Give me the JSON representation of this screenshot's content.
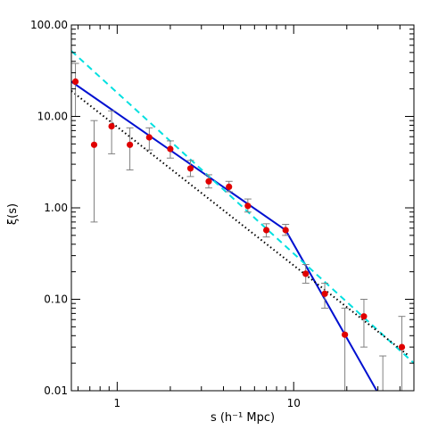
{
  "chart_data": {
    "type": "scatter",
    "title": "",
    "xlabel": "s (h⁻¹ Mpc)",
    "ylabel": "ξ(s)",
    "xscale": "log",
    "yscale": "log",
    "xlim": [
      0.55,
      48
    ],
    "ylim": [
      0.01,
      100
    ],
    "xticklabels": [
      {
        "value": 1,
        "label": "1"
      },
      {
        "value": 10,
        "label": "10"
      }
    ],
    "yticklabels": [
      {
        "value": 0.01,
        "label": "0.01"
      },
      {
        "value": 0.1,
        "label": "0.10"
      },
      {
        "value": 1,
        "label": "1.00"
      },
      {
        "value": 10,
        "label": "10.00"
      },
      {
        "value": 100,
        "label": "100.00"
      }
    ],
    "grid": false,
    "legend": "none",
    "points": {
      "color": "#e00000",
      "errorbar_color": "#808080",
      "data": [
        {
          "x": 0.58,
          "y": 24,
          "ylo": 10,
          "yhi": 38
        },
        {
          "x": 0.74,
          "y": 4.9,
          "ylo": 0.7,
          "yhi": 9
        },
        {
          "x": 0.93,
          "y": 7.8,
          "ylo": 3.9,
          "yhi": 11.5
        },
        {
          "x": 1.18,
          "y": 4.9,
          "ylo": 2.6,
          "yhi": 7.5
        },
        {
          "x": 1.52,
          "y": 5.9,
          "ylo": 4.3,
          "yhi": 7.5
        },
        {
          "x": 2.0,
          "y": 4.4,
          "ylo": 3.5,
          "yhi": 5.4
        },
        {
          "x": 2.6,
          "y": 2.7,
          "ylo": 2.2,
          "yhi": 3.3
        },
        {
          "x": 3.3,
          "y": 1.95,
          "ylo": 1.65,
          "yhi": 2.3
        },
        {
          "x": 4.3,
          "y": 1.7,
          "ylo": 1.5,
          "yhi": 1.95
        },
        {
          "x": 5.5,
          "y": 1.05,
          "ylo": 0.9,
          "yhi": 1.25
        },
        {
          "x": 7.0,
          "y": 0.57,
          "ylo": 0.48,
          "yhi": 0.67
        },
        {
          "x": 9.0,
          "y": 0.57,
          "ylo": 0.5,
          "yhi": 0.66
        },
        {
          "x": 11.7,
          "y": 0.19,
          "ylo": 0.15,
          "yhi": 0.24
        },
        {
          "x": 15.0,
          "y": 0.115,
          "ylo": 0.08,
          "yhi": 0.15
        },
        {
          "x": 19.5,
          "y": 0.041,
          "ylo": 0.008,
          "yhi": 0.08
        },
        {
          "x": 25.0,
          "y": 0.065,
          "ylo": 0.03,
          "yhi": 0.1
        },
        {
          "x": 41.0,
          "y": 0.03,
          "ylo": 0.008,
          "yhi": 0.065
        }
      ]
    },
    "extra_errorbars": [
      {
        "x": 32.0,
        "ylo": 0.008,
        "yhi": 0.024
      }
    ],
    "series": [
      {
        "style": "solid",
        "color": "#0010d0",
        "x": [
          0.55,
          9.0,
          30.0
        ],
        "y": [
          24,
          0.57,
          0.0095
        ]
      },
      {
        "style": "dashed",
        "color": "#00e0e0",
        "x": [
          0.55,
          48
        ],
        "y": [
          52,
          0.02
        ]
      },
      {
        "style": "dotted",
        "color": "#000000",
        "x": [
          0.55,
          45
        ],
        "y": [
          19,
          0.024
        ]
      }
    ]
  }
}
